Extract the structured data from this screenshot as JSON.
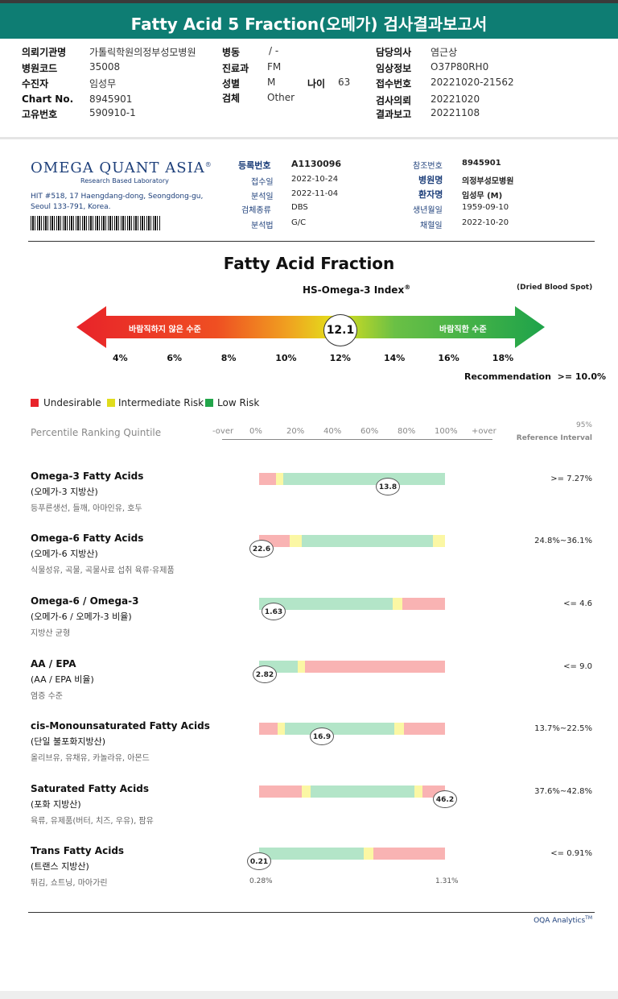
{
  "header": {
    "title": "Fatty Acid 5 Fraction(오메가) 검사결과보고서"
  },
  "patient_info": {
    "col1": [
      {
        "label": "의뢰기관명",
        "value": "가톨릭학원의정부성모병원"
      },
      {
        "label": "병원코드",
        "value": "35008"
      },
      {
        "label": "수진자",
        "value": "임성무"
      },
      {
        "label": "Chart No.",
        "value": "8945901"
      },
      {
        "label": "고유번호",
        "value": "590910-1"
      }
    ],
    "col2": [
      {
        "label": "병동",
        "value": "/ -"
      },
      {
        "label": "진료과",
        "value": "FM"
      },
      {
        "label": "성별",
        "value": "M"
      },
      {
        "label": "검체",
        "value": "Other"
      }
    ],
    "age": {
      "label": "나이",
      "value": "63"
    },
    "col3": [
      {
        "label": "담당의사",
        "value": "염근상"
      },
      {
        "label": "임상정보",
        "value": "O37P80RH0"
      },
      {
        "label": "접수번호",
        "value": "20221020-21562"
      },
      {
        "label": "검사의뢰",
        "value": "20221020"
      },
      {
        "label": "결과보고",
        "value": "20221108"
      }
    ]
  },
  "lab": {
    "logo": "OMEGA QUANT ASIA",
    "logo_mark": "®",
    "tagline": "Research Based Laboratory",
    "address_line1": "HIT #518, 17 Haengdang-dong, Seongdong-gu,",
    "address_line2": "Seoul 133-791, Korea."
  },
  "sample": {
    "left": [
      {
        "label": "등록번호",
        "value": "A1130096"
      },
      {
        "label": "접수일",
        "value": "2022-10-24"
      },
      {
        "label": "분석일",
        "value": "2022-11-04"
      },
      {
        "label": "검체종류",
        "value": "DBS"
      },
      {
        "label": "분석법",
        "value": "G/C"
      }
    ],
    "right": [
      {
        "label": "참조번호",
        "value": "8945901"
      },
      {
        "label": "병원명",
        "value": "의정부성모병원"
      },
      {
        "label": "환자명",
        "value": "임성무 (M)"
      },
      {
        "label": "생년월일",
        "value": "1959-09-10"
      },
      {
        "label": "채혈일",
        "value": "2022-10-20"
      }
    ]
  },
  "report": {
    "title": "Fatty Acid Fraction",
    "index_title": "HS-Omega-3 Index",
    "index_mark": "®",
    "sample_type": "(Dried Blood Spot)",
    "bad_label": "바람직하지 않은 수준",
    "good_label": "바람직한 수준",
    "index_value": "12.1",
    "index_value_num": 12.1,
    "scale_ticks": [
      "4%",
      "6%",
      "8%",
      "10%",
      "12%",
      "14%",
      "16%",
      "18%"
    ],
    "recommendation_label": "Recommendation",
    "recommendation_value": ">= 10.0%"
  },
  "legend": [
    {
      "label": "Undesirable",
      "color": "#e8232a"
    },
    {
      "label": "Intermediate Risk",
      "color": "#e0dc1c"
    },
    {
      "label": "Low Risk",
      "color": "#22a54a"
    }
  ],
  "percentile": {
    "label": "Percentile Ranking Quintile",
    "ticks": [
      "-over",
      "0%",
      "20%",
      "40%",
      "60%",
      "80%",
      "100%",
      "+over"
    ],
    "ref_line1": "95%",
    "ref_line2": "Reference Interval"
  },
  "rows": [
    {
      "title": "Omega-3 Fatty Acids",
      "subtitle": "(오메가-3 지방산)",
      "foods": "등푸른생선, 들깨, 아마인유, 호두",
      "ref": ">= 7.27%",
      "value": "13.8",
      "value_num": 13.8
    },
    {
      "title": "Omega-6 Fatty Acids",
      "subtitle": "(오메가-6 지방산)",
      "foods": "식물성유, 곡물, 곡물사료 섭취 육류·유제품",
      "ref": "24.8%~36.1%",
      "value": "22.6",
      "value_num": 22.6
    },
    {
      "title": "Omega-6 / Omega-3",
      "subtitle": "(오메가-6 / 오메가-3 비율)",
      "foods": "지방산 균형",
      "ref": "<= 4.6",
      "value": "1.63",
      "value_num": 1.63
    },
    {
      "title": "AA / EPA",
      "subtitle": "(AA / EPA 비율)",
      "foods": "염증 수준",
      "ref": "<= 9.0",
      "value": "2.82",
      "value_num": 2.82
    },
    {
      "title": "cis-Monounsaturated Fatty Acids",
      "subtitle": "(단일 불포화지방산)",
      "foods": "올리브유, 유채유, 카놀라유, 아몬드",
      "ref": "13.7%~22.5%",
      "value": "16.9",
      "value_num": 16.9
    },
    {
      "title": "Saturated Fatty Acids",
      "subtitle": "(포화 지방산)",
      "foods": "육류, 유제품(버터, 치즈, 우유), 팜유",
      "ref": "37.6%~42.8%",
      "value": "46.2",
      "value_num": 46.2
    },
    {
      "title": "Trans Fatty Acids",
      "subtitle": "(트랜스 지방산)",
      "foods": "튀김, 쇼트닝, 마아가린",
      "ref": "<= 0.91%",
      "value": "0.21",
      "value_num": 0.21
    }
  ],
  "trans_scale": {
    "min": "0.28%",
    "max": "1.31%"
  },
  "footer": {
    "brand": "OQA Analytics",
    "mark": "TM"
  }
}
